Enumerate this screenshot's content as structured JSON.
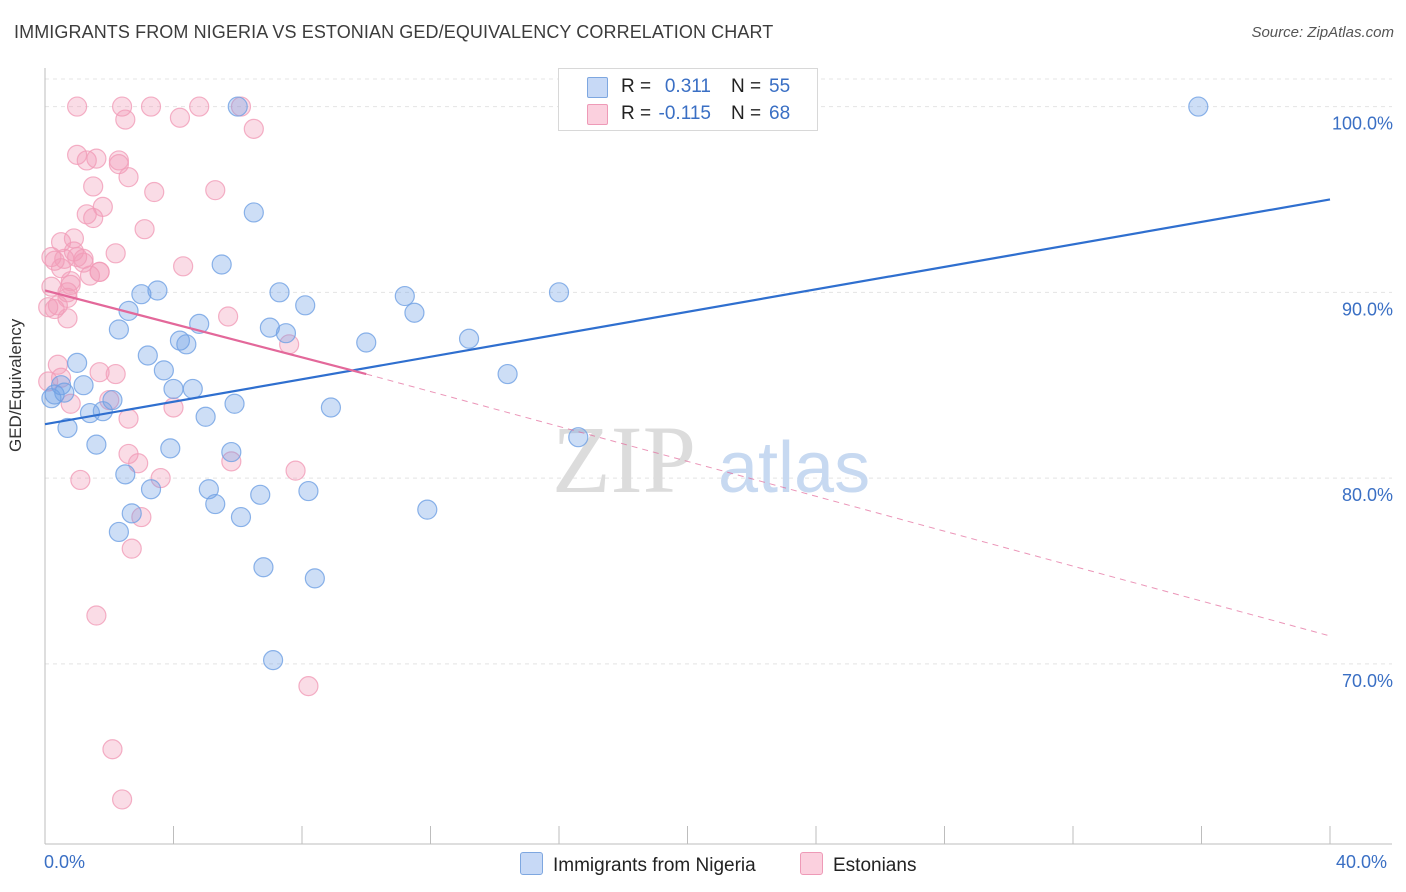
{
  "title": "IMMIGRANTS FROM NIGERIA VS ESTONIAN GED/EQUIVALENCY CORRELATION CHART",
  "source": "Source: ZipAtlas.com",
  "watermark": {
    "zip": "ZIP",
    "atlas": "atlas"
  },
  "legend": {
    "r_label": "R =",
    "n_label": "N =",
    "entries": [
      {
        "name": "Immigrants from Nigeria",
        "r": "0.311",
        "n": "55"
      },
      {
        "name": "Estonians",
        "r": "-0.115",
        "n": "68"
      }
    ]
  },
  "chart_data": {
    "type": "scatter",
    "title": "IMMIGRANTS FROM NIGERIA VS ESTONIAN GED/EQUIVALENCY CORRELATION CHART",
    "xlabel": "",
    "ylabel": "GED/Equivalency",
    "xlim": [
      0,
      40
    ],
    "ylim": [
      60.3,
      102.4
    ],
    "x_tick_labels": [
      "0.0%",
      "40.0%"
    ],
    "y_ticks": [
      {
        "value": 70,
        "label": "70.0%"
      },
      {
        "value": 80,
        "label": "80.0%"
      },
      {
        "value": 90,
        "label": "90.0%"
      },
      {
        "value": 100,
        "label": "100.0%"
      }
    ],
    "grid": true,
    "legend_position": "top-center",
    "colors": {
      "nigeria": "#6fa0e4",
      "nigeria_line": "#2f6fcf",
      "estonian": "#f19cb8",
      "estonian_line": "#e3689a",
      "tick_label": "#3a6fc4"
    },
    "series": [
      {
        "name": "Immigrants from Nigeria",
        "r": 0.311,
        "n": 55,
        "trend": {
          "x": [
            0.0,
            40.0
          ],
          "y": [
            82.9,
            95.0
          ],
          "style": "solid"
        },
        "points": [
          [
            0.2,
            84.3
          ],
          [
            0.3,
            84.5
          ],
          [
            0.5,
            85.0
          ],
          [
            0.6,
            84.6
          ],
          [
            0.7,
            82.7
          ],
          [
            1.0,
            86.2
          ],
          [
            1.2,
            85.0
          ],
          [
            1.4,
            83.5
          ],
          [
            1.6,
            81.8
          ],
          [
            1.8,
            83.6
          ],
          [
            2.1,
            84.2
          ],
          [
            2.3,
            77.1
          ],
          [
            2.3,
            88.0
          ],
          [
            2.5,
            80.2
          ],
          [
            2.6,
            89.0
          ],
          [
            2.7,
            78.1
          ],
          [
            3.0,
            89.9
          ],
          [
            3.2,
            86.6
          ],
          [
            3.3,
            79.4
          ],
          [
            3.5,
            90.1
          ],
          [
            3.7,
            85.8
          ],
          [
            3.9,
            81.6
          ],
          [
            4.0,
            84.8
          ],
          [
            4.2,
            87.4
          ],
          [
            4.4,
            87.2
          ],
          [
            4.6,
            84.8
          ],
          [
            4.8,
            88.3
          ],
          [
            5.0,
            83.3
          ],
          [
            5.1,
            79.4
          ],
          [
            5.3,
            78.6
          ],
          [
            5.5,
            91.5
          ],
          [
            5.8,
            81.4
          ],
          [
            5.9,
            84.0
          ],
          [
            6.0,
            100.0
          ],
          [
            6.1,
            77.9
          ],
          [
            6.5,
            94.3
          ],
          [
            6.7,
            79.1
          ],
          [
            6.8,
            75.2
          ],
          [
            7.0,
            88.1
          ],
          [
            7.1,
            70.2
          ],
          [
            7.3,
            90.0
          ],
          [
            7.5,
            87.8
          ],
          [
            8.1,
            89.3
          ],
          [
            8.2,
            79.3
          ],
          [
            8.4,
            74.6
          ],
          [
            8.9,
            83.8
          ],
          [
            10.0,
            87.3
          ],
          [
            11.2,
            89.8
          ],
          [
            11.5,
            88.9
          ],
          [
            11.9,
            78.3
          ],
          [
            13.2,
            87.5
          ],
          [
            14.4,
            85.6
          ],
          [
            16.0,
            90.0
          ],
          [
            16.6,
            82.2
          ],
          [
            35.9,
            100.0
          ]
        ]
      },
      {
        "name": "Estonians",
        "r": -0.115,
        "n": 68,
        "trend": {
          "x": [
            0.0,
            10.0
          ],
          "y": [
            90.1,
            85.6
          ],
          "style": "solid"
        },
        "trend_extension": {
          "x": [
            10.0,
            40.0
          ],
          "y": [
            85.6,
            71.5
          ],
          "style": "dashed"
        },
        "points": [
          [
            0.1,
            85.2
          ],
          [
            0.1,
            89.2
          ],
          [
            0.2,
            90.3
          ],
          [
            0.2,
            91.9
          ],
          [
            0.3,
            91.7
          ],
          [
            0.3,
            89.1
          ],
          [
            0.4,
            89.3
          ],
          [
            0.4,
            86.1
          ],
          [
            0.5,
            85.4
          ],
          [
            0.5,
            91.3
          ],
          [
            0.5,
            92.7
          ],
          [
            0.6,
            91.8
          ],
          [
            0.7,
            90.0
          ],
          [
            0.7,
            88.6
          ],
          [
            0.7,
            89.7
          ],
          [
            0.8,
            90.4
          ],
          [
            0.8,
            90.6
          ],
          [
            0.8,
            84.0
          ],
          [
            0.9,
            92.2
          ],
          [
            0.9,
            92.9
          ],
          [
            1.0,
            91.9
          ],
          [
            1.0,
            97.4
          ],
          [
            1.1,
            79.9
          ],
          [
            1.2,
            91.8
          ],
          [
            1.2,
            91.6
          ],
          [
            1.3,
            94.2
          ],
          [
            1.3,
            97.1
          ],
          [
            1.4,
            90.9
          ],
          [
            1.5,
            95.7
          ],
          [
            1.5,
            94.0
          ],
          [
            1.6,
            97.2
          ],
          [
            1.6,
            72.6
          ],
          [
            1.7,
            91.1
          ],
          [
            1.7,
            85.7
          ],
          [
            1.7,
            91.1
          ],
          [
            1.8,
            94.6
          ],
          [
            2.0,
            84.2
          ],
          [
            2.1,
            65.4
          ],
          [
            2.2,
            92.1
          ],
          [
            2.2,
            85.6
          ],
          [
            2.3,
            96.9
          ],
          [
            2.3,
            97.1
          ],
          [
            2.4,
            62.7
          ],
          [
            2.4,
            100.0
          ],
          [
            2.5,
            99.3
          ],
          [
            2.6,
            96.2
          ],
          [
            2.6,
            81.3
          ],
          [
            2.6,
            83.2
          ],
          [
            2.7,
            76.2
          ],
          [
            2.9,
            80.8
          ],
          [
            3.0,
            77.9
          ],
          [
            3.1,
            93.4
          ],
          [
            3.3,
            100.0
          ],
          [
            3.4,
            95.4
          ],
          [
            3.6,
            80.0
          ],
          [
            4.0,
            83.8
          ],
          [
            4.2,
            99.4
          ],
          [
            4.3,
            91.4
          ],
          [
            4.8,
            100.0
          ],
          [
            5.3,
            95.5
          ],
          [
            5.7,
            88.7
          ],
          [
            5.8,
            80.9
          ],
          [
            6.1,
            100.0
          ],
          [
            6.5,
            98.8
          ],
          [
            7.6,
            87.2
          ],
          [
            7.8,
            80.4
          ],
          [
            8.2,
            68.8
          ],
          [
            1.0,
            100.0
          ]
        ]
      }
    ]
  }
}
